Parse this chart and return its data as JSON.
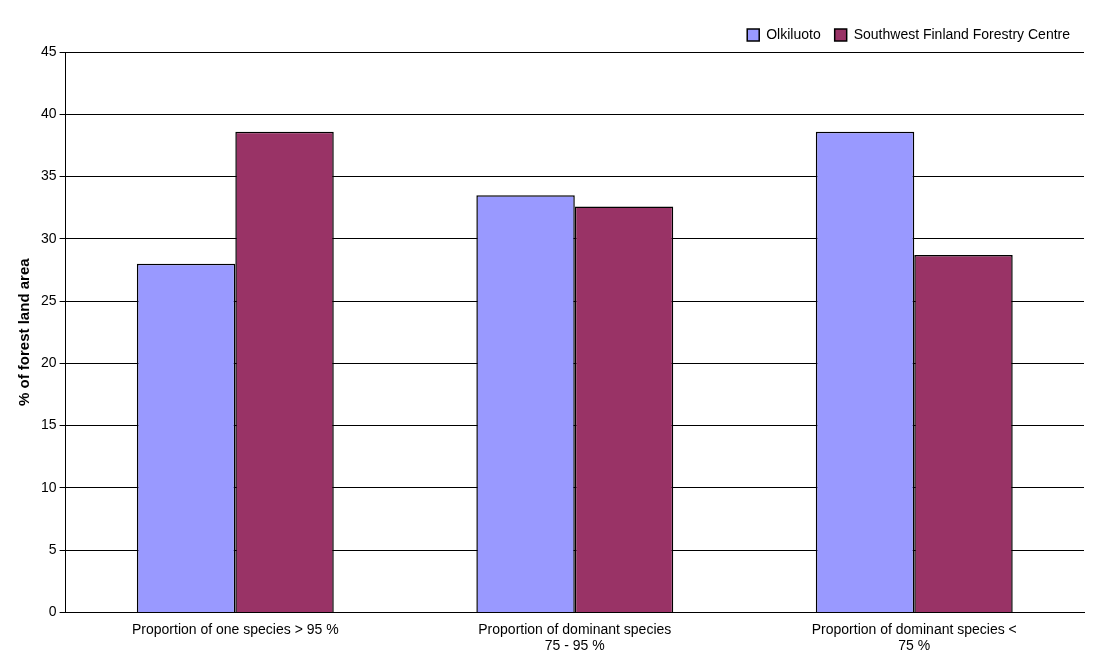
{
  "chart_data": {
    "type": "bar",
    "ylabel": "% of forest land area",
    "categories": [
      "Proportion of one species > 95 %",
      "Proportion of dominant species 75 - 95 %",
      "Proportion of dominant species < 75 %"
    ],
    "series": [
      {
        "name": "Olkiluoto",
        "color": "#9999ff",
        "values": [
          28.0,
          33.5,
          38.6
        ]
      },
      {
        "name": "Southwest Finland Forestry Centre",
        "color": "#993366",
        "values": [
          38.6,
          32.6,
          28.7
        ]
      }
    ],
    "ylim": [
      0,
      45
    ],
    "yticks": [
      0,
      5,
      10,
      15,
      20,
      25,
      30,
      35,
      40,
      45
    ],
    "grid": "y",
    "legend": "top right"
  }
}
